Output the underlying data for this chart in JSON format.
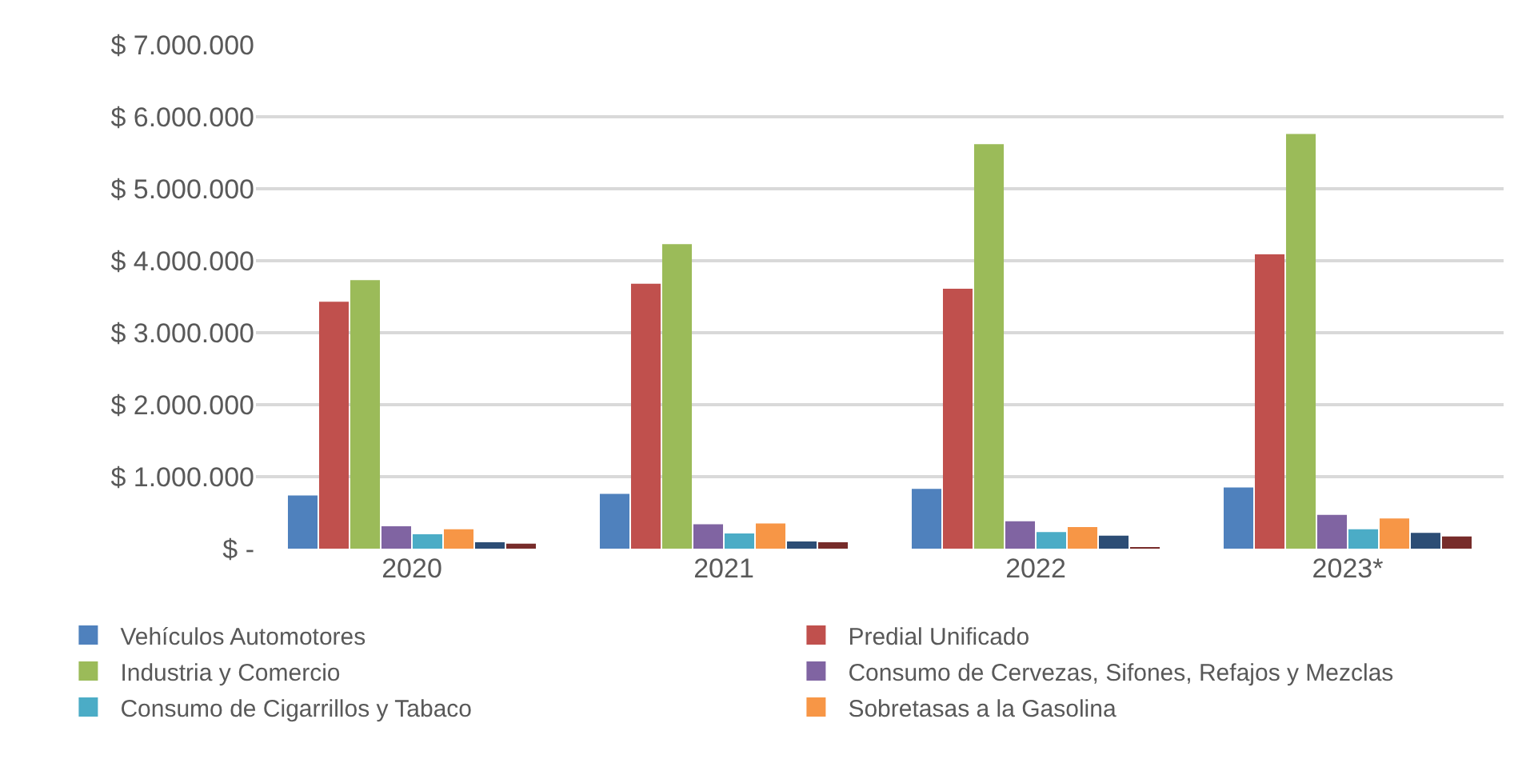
{
  "chart_data": {
    "type": "bar",
    "categories": [
      "2020",
      "2021",
      "2022",
      "2023*"
    ],
    "series": [
      {
        "name": "Vehículos Automotores",
        "color": "#4f81bd",
        "values": [
          740000,
          760000,
          830000,
          850000
        ]
      },
      {
        "name": "Predial Unificado",
        "color": "#c0504d",
        "values": [
          3430000,
          3680000,
          3610000,
          4090000
        ]
      },
      {
        "name": "Industria y Comercio",
        "color": "#9bbb59",
        "values": [
          3730000,
          4230000,
          5620000,
          5760000
        ]
      },
      {
        "name": "Consumo de Cervezas, Sifones, Refajos y Mezclas",
        "color": "#8064a2",
        "values": [
          310000,
          340000,
          380000,
          470000
        ]
      },
      {
        "name": "Consumo de Cigarrillos y Tabaco",
        "color": "#4bacc6",
        "values": [
          200000,
          210000,
          230000,
          270000
        ]
      },
      {
        "name": "Sobretasas a la Gasolina",
        "color": "#f79646",
        "values": [
          270000,
          350000,
          300000,
          420000
        ]
      },
      {
        "color": "#2c4d75",
        "values": [
          90000,
          100000,
          180000,
          220000
        ]
      },
      {
        "color": "#772c2a",
        "values": [
          70000,
          90000,
          20000,
          170000
        ]
      }
    ],
    "ylim": [
      0,
      7000000
    ],
    "yticks": [
      {
        "value": 0,
        "label": "$ -"
      },
      {
        "value": 1000000,
        "label": "$ 1.000.000"
      },
      {
        "value": 2000000,
        "label": "$ 2.000.000"
      },
      {
        "value": 3000000,
        "label": "$ 3.000.000"
      },
      {
        "value": 4000000,
        "label": "$ 4.000.000"
      },
      {
        "value": 5000000,
        "label": "$ 5.000.000"
      },
      {
        "value": 6000000,
        "label": "$ 6.000.000"
      },
      {
        "value": 7000000,
        "label": "$ 7.000.000"
      }
    ],
    "grid": "y",
    "legend": "bottom"
  }
}
